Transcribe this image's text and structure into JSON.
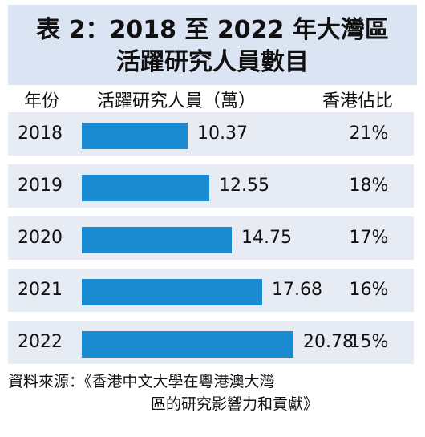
{
  "title": {
    "line1": "表 2：2018 至 2022 年大灣區",
    "line2": "活躍研究人員數目"
  },
  "header": {
    "year": "年份",
    "researchers": "活躍研究人員（萬）",
    "hk_share": "香港佔比"
  },
  "chart_data": {
    "type": "bar",
    "orientation": "horizontal",
    "categories": [
      "2018",
      "2019",
      "2020",
      "2021",
      "2022"
    ],
    "series": [
      {
        "values": [
          10.37,
          12.55,
          14.75,
          17.68,
          20.78
        ]
      }
    ],
    "value_labels": [
      "10.37",
      "12.55",
      "14.75",
      "17.68",
      "20.78"
    ],
    "hk_share": [
      "21%",
      "18%",
      "17%",
      "16%",
      "15%"
    ],
    "bar_color": "#1a8bd0",
    "xlim": [
      0,
      37
    ]
  },
  "source": {
    "line1": "資料來源：《香港中文大學在粵港澳大灣",
    "line2": "區的研究影響力和貢獻》"
  }
}
